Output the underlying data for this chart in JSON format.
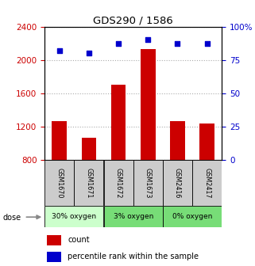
{
  "title": "GDS290 / 1586",
  "samples": [
    "GSM1670",
    "GSM1671",
    "GSM1672",
    "GSM1673",
    "GSM2416",
    "GSM2417"
  ],
  "counts": [
    1260,
    1060,
    1700,
    2130,
    1260,
    1230
  ],
  "percentiles": [
    82,
    80,
    87,
    90,
    87,
    87
  ],
  "ylim_left": [
    800,
    2400
  ],
  "ylim_right": [
    0,
    100
  ],
  "yticks_left": [
    800,
    1200,
    1600,
    2000,
    2400
  ],
  "yticks_right": [
    0,
    25,
    50,
    75,
    100
  ],
  "ytick_labels_right": [
    "0",
    "25",
    "50",
    "75",
    "100%"
  ],
  "bar_color": "#cc0000",
  "dot_color": "#0000cc",
  "bar_width": 0.5,
  "group_colors": [
    "#ccffcc",
    "#77dd77",
    "#77dd77"
  ],
  "group_ranges": [
    [
      0,
      2
    ],
    [
      2,
      4
    ],
    [
      4,
      6
    ]
  ],
  "group_labels": [
    "30% oxygen",
    "3% oxygen",
    "0% oxygen"
  ],
  "dose_label": "dose",
  "grid_color": "#aaaaaa",
  "bg_color": "#ffffff",
  "sample_box_color": "#cccccc",
  "legend_count_color": "#cc0000",
  "legend_pct_color": "#0000cc"
}
